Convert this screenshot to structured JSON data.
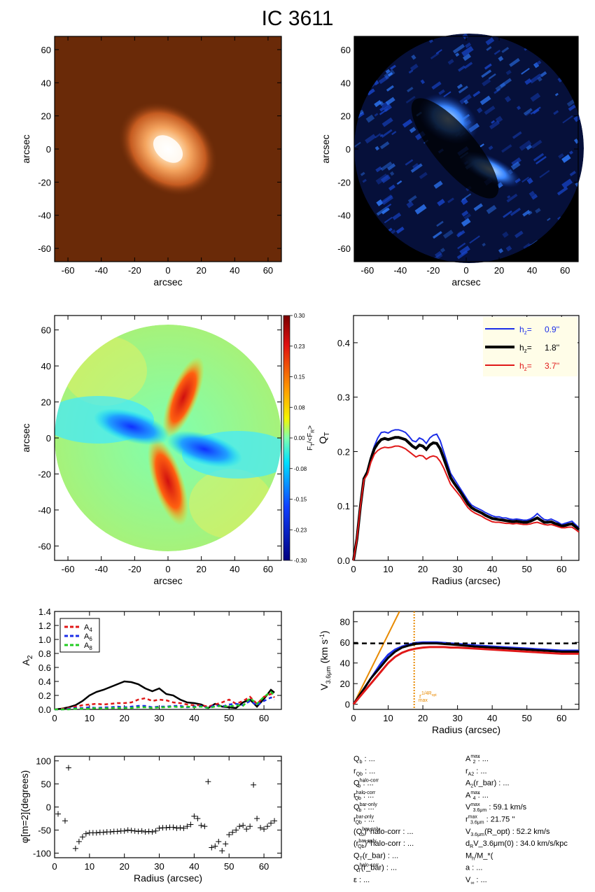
{
  "title": "IC 3611",
  "colors": {
    "orange_img": "#6a2a08",
    "blue_img": "#000000",
    "h1": "#1c2ee8",
    "h2": "#000000",
    "h3": "#e01818",
    "legend_bg": "#fffde8",
    "rmax": "#e88a00"
  },
  "colorbar": {
    "ticks": [
      "0.30",
      "0.23",
      "0.15",
      "0.08",
      "0.00",
      "-0.08",
      "-0.15",
      "-0.23",
      "-0.30"
    ],
    "label": "F_T/<F_R>"
  },
  "chart_data": [
    {
      "type": "heatmap",
      "name": "image-orange",
      "xlabel": "arcsec",
      "ylabel": "arcsec",
      "xlim": [
        -68,
        68
      ],
      "ylim": [
        -68,
        68
      ],
      "xticks": [
        "-60",
        "-40",
        "-20",
        "0",
        "20",
        "40",
        "60"
      ],
      "yticks": [
        "60",
        "40",
        "20",
        "0",
        "-20",
        "-40",
        "-60"
      ]
    },
    {
      "type": "heatmap",
      "name": "image-blue",
      "xlabel": "arcsec",
      "ylabel": "arcsec",
      "xlim": [
        -68,
        68
      ],
      "ylim": [
        -68,
        68
      ],
      "xticks": [
        "-60",
        "-40",
        "-20",
        "0",
        "20",
        "40",
        "60"
      ],
      "yticks": [
        "60",
        "40",
        "20",
        "0",
        "-20",
        "-40",
        "-60"
      ]
    },
    {
      "type": "heatmap",
      "name": "torque-map",
      "xlabel": "arcsec",
      "ylabel": "arcsec",
      "xlim": [
        -68,
        68
      ],
      "ylim": [
        -68,
        68
      ],
      "xticks": [
        "-60",
        "-40",
        "-20",
        "0",
        "20",
        "40",
        "60"
      ],
      "yticks": [
        "60",
        "40",
        "20",
        "0",
        "-20",
        "-40",
        "-60"
      ]
    },
    {
      "type": "line",
      "name": "qt-profile",
      "xlabel": "Radius (arcsec)",
      "ylabel": "Q_T",
      "xlim": [
        0,
        65
      ],
      "ylim": [
        0,
        0.45
      ],
      "xticks": [
        "0",
        "10",
        "20",
        "30",
        "40",
        "50",
        "60"
      ],
      "yticks": [
        "0.0",
        "0.1",
        "0.2",
        "0.3",
        "0.4"
      ],
      "legend": {
        "position": "top-right",
        "entries": [
          {
            "label": "h_z=",
            "value": "0.9''",
            "color": "#1c2ee8"
          },
          {
            "label": "h_z=",
            "value": "1.8''",
            "color": "#000000"
          },
          {
            "label": "h_z=",
            "value": "3.7''",
            "color": "#e01818"
          }
        ]
      },
      "x": [
        0,
        1,
        2,
        3,
        4,
        5,
        6,
        7,
        8,
        9,
        10,
        11,
        12,
        13,
        14,
        15,
        16,
        17,
        18,
        19,
        20,
        21,
        22,
        23,
        24,
        25,
        26,
        27,
        28,
        29,
        30,
        31,
        32,
        33,
        34,
        35,
        36,
        37,
        38,
        39,
        40,
        41,
        42,
        43,
        44,
        45,
        46,
        47,
        48,
        49,
        50,
        51,
        52,
        53,
        54,
        55,
        56,
        57,
        58,
        59,
        60,
        61,
        62,
        63,
        64,
        65
      ],
      "series": [
        {
          "name": "0.9''",
          "color": "#1c2ee8",
          "width": 2,
          "values": [
            0.0,
            0.04,
            0.1,
            0.15,
            0.165,
            0.19,
            0.21,
            0.225,
            0.235,
            0.236,
            0.234,
            0.238,
            0.24,
            0.24,
            0.238,
            0.235,
            0.228,
            0.22,
            0.218,
            0.225,
            0.222,
            0.215,
            0.225,
            0.23,
            0.232,
            0.22,
            0.2,
            0.18,
            0.16,
            0.15,
            0.14,
            0.13,
            0.12,
            0.11,
            0.102,
            0.098,
            0.095,
            0.092,
            0.088,
            0.085,
            0.082,
            0.08,
            0.08,
            0.078,
            0.078,
            0.076,
            0.075,
            0.076,
            0.075,
            0.074,
            0.074,
            0.076,
            0.08,
            0.086,
            0.08,
            0.075,
            0.074,
            0.076,
            0.073,
            0.07,
            0.066,
            0.068,
            0.07,
            0.072,
            0.066,
            0.06
          ]
        },
        {
          "name": "1.8''",
          "color": "#000000",
          "width": 4,
          "values": [
            0.0,
            0.04,
            0.1,
            0.15,
            0.162,
            0.186,
            0.205,
            0.215,
            0.222,
            0.224,
            0.222,
            0.224,
            0.226,
            0.226,
            0.224,
            0.222,
            0.216,
            0.21,
            0.206,
            0.212,
            0.21,
            0.204,
            0.212,
            0.216,
            0.215,
            0.205,
            0.188,
            0.17,
            0.152,
            0.142,
            0.133,
            0.124,
            0.114,
            0.104,
            0.097,
            0.093,
            0.09,
            0.087,
            0.083,
            0.08,
            0.077,
            0.076,
            0.075,
            0.074,
            0.073,
            0.072,
            0.071,
            0.072,
            0.071,
            0.07,
            0.07,
            0.072,
            0.075,
            0.078,
            0.074,
            0.07,
            0.07,
            0.071,
            0.068,
            0.066,
            0.063,
            0.064,
            0.066,
            0.067,
            0.062,
            0.057
          ]
        },
        {
          "name": "3.7''",
          "color": "#e01818",
          "width": 2,
          "values": [
            0.0,
            0.04,
            0.1,
            0.148,
            0.158,
            0.18,
            0.195,
            0.202,
            0.206,
            0.208,
            0.207,
            0.208,
            0.21,
            0.21,
            0.208,
            0.205,
            0.2,
            0.195,
            0.19,
            0.193,
            0.192,
            0.186,
            0.19,
            0.192,
            0.19,
            0.182,
            0.17,
            0.155,
            0.14,
            0.132,
            0.124,
            0.116,
            0.106,
            0.097,
            0.091,
            0.087,
            0.084,
            0.081,
            0.077,
            0.074,
            0.071,
            0.07,
            0.07,
            0.069,
            0.068,
            0.068,
            0.067,
            0.068,
            0.067,
            0.066,
            0.066,
            0.067,
            0.069,
            0.07,
            0.068,
            0.066,
            0.065,
            0.066,
            0.064,
            0.062,
            0.06,
            0.06,
            0.061,
            0.061,
            0.057,
            0.052
          ]
        }
      ]
    },
    {
      "type": "line",
      "name": "a2-profile",
      "xlabel": "",
      "ylabel": "A_2",
      "xlim": [
        0,
        65
      ],
      "ylim": [
        0,
        1.4
      ],
      "xticks": [
        "0",
        "10",
        "20",
        "30",
        "40",
        "50",
        "60"
      ],
      "yticks": [
        "1.4",
        "1.2",
        "1.0",
        "0.8",
        "0.6",
        "0.4",
        "0.2",
        "0.0"
      ],
      "legend": {
        "position": "top-left",
        "entries": [
          {
            "label": "A",
            "sub": "4",
            "color": "#e01818"
          },
          {
            "label": "A",
            "sub": "6",
            "color": "#1c2ee8"
          },
          {
            "label": "A",
            "sub": "8",
            "color": "#22cc22"
          }
        ]
      },
      "x": [
        0,
        2,
        4,
        6,
        8,
        10,
        12,
        14,
        16,
        18,
        20,
        22,
        24,
        26,
        28,
        30,
        32,
        34,
        36,
        38,
        40,
        42,
        44,
        46,
        48,
        50,
        52,
        54,
        56,
        58,
        60,
        62,
        63
      ],
      "series": [
        {
          "name": "A_2",
          "color": "#000000",
          "dash": "",
          "width": 2.5,
          "values": [
            0.0,
            0.01,
            0.03,
            0.06,
            0.12,
            0.2,
            0.25,
            0.28,
            0.32,
            0.36,
            0.4,
            0.39,
            0.36,
            0.3,
            0.26,
            0.3,
            0.22,
            0.2,
            0.14,
            0.1,
            0.09,
            0.07,
            0.02,
            0.08,
            0.04,
            0.03,
            0.02,
            0.1,
            0.14,
            0.04,
            0.15,
            0.28,
            0.24
          ]
        },
        {
          "name": "A4",
          "color": "#e01818",
          "dash": "5,4",
          "width": 2.5,
          "values": [
            0.0,
            0.01,
            0.02,
            0.04,
            0.06,
            0.07,
            0.08,
            0.07,
            0.08,
            0.09,
            0.09,
            0.1,
            0.14,
            0.16,
            0.12,
            0.14,
            0.13,
            0.1,
            0.09,
            0.07,
            0.06,
            0.06,
            0.04,
            0.07,
            0.1,
            0.14,
            0.08,
            0.12,
            0.18,
            0.08,
            0.18,
            0.22,
            0.17
          ]
        },
        {
          "name": "A6",
          "color": "#1c2ee8",
          "dash": "5,4",
          "width": 2.5,
          "values": [
            0.0,
            0.0,
            0.01,
            0.02,
            0.02,
            0.03,
            0.02,
            0.03,
            0.03,
            0.04,
            0.03,
            0.04,
            0.05,
            0.05,
            0.03,
            0.04,
            0.04,
            0.05,
            0.05,
            0.03,
            0.04,
            0.05,
            0.02,
            0.06,
            0.04,
            0.07,
            0.08,
            0.06,
            0.12,
            0.06,
            0.12,
            0.17,
            0.14
          ]
        },
        {
          "name": "A8",
          "color": "#22cc22",
          "dash": "5,4",
          "width": 2.5,
          "values": [
            0.0,
            0.0,
            0.0,
            0.01,
            0.01,
            0.01,
            0.02,
            0.01,
            0.02,
            0.02,
            0.02,
            0.02,
            0.03,
            0.03,
            0.02,
            0.03,
            0.03,
            0.04,
            0.03,
            0.04,
            0.03,
            0.04,
            0.02,
            0.04,
            0.05,
            0.04,
            0.06,
            0.05,
            0.16,
            0.08,
            0.18,
            0.25,
            0.2
          ]
        }
      ]
    },
    {
      "type": "line",
      "name": "rotation-curve",
      "xlabel": "Radius (arcsec)",
      "ylabel": "V_3.6μm (km s^-1)",
      "xlim": [
        0,
        65
      ],
      "ylim": [
        -5,
        90
      ],
      "xticks": [
        "0",
        "10",
        "20",
        "30",
        "40",
        "50",
        "60"
      ],
      "yticks": [
        "80",
        "60",
        "40",
        "20",
        "0"
      ],
      "vmax": 59,
      "r_label": "r",
      "r_label_super": "1/4R",
      "r_label_super_sub": "opt",
      "r_label_sub": "max",
      "r_mark": 17.5,
      "slope_line": {
        "x": [
          0,
          14
        ],
        "y": [
          0,
          95
        ]
      },
      "x": [
        0,
        1,
        2,
        3,
        4,
        5,
        6,
        7,
        8,
        9,
        10,
        12,
        14,
        16,
        18,
        20,
        22,
        24,
        26,
        28,
        30,
        35,
        40,
        45,
        50,
        55,
        60,
        65
      ],
      "series": [
        {
          "name": "0.9''",
          "color": "#1c2ee8",
          "width": 3,
          "values": [
            0,
            5,
            10,
            15,
            20,
            25,
            30,
            35,
            40,
            44,
            48,
            53,
            56,
            58,
            59.5,
            60,
            60,
            60,
            59.5,
            59,
            58.5,
            57,
            56,
            55,
            54,
            53,
            52,
            52
          ]
        },
        {
          "name": "1.8''",
          "color": "#000000",
          "width": 3,
          "values": [
            0,
            5,
            10,
            15,
            20,
            25,
            29,
            33,
            37,
            41,
            45,
            51,
            55,
            57,
            58.5,
            59,
            59,
            59,
            58.5,
            58,
            57.5,
            56,
            55,
            54,
            53,
            52,
            51,
            51
          ]
        },
        {
          "name": "3.7''",
          "color": "#e01818",
          "width": 3,
          "values": [
            0,
            4,
            8,
            12,
            16,
            20,
            24,
            28,
            32,
            36,
            40,
            46,
            50,
            52.5,
            54,
            55,
            55.5,
            55.5,
            55.5,
            55,
            55,
            54,
            53,
            52,
            51,
            50,
            49,
            49
          ]
        }
      ]
    },
    {
      "type": "scatter",
      "name": "phase-angle",
      "xlabel": "Radius (arcsec)",
      "ylabel": "φ[m=2](degrees)",
      "xlim": [
        0,
        65
      ],
      "ylim": [
        -110,
        110
      ],
      "xticks": [
        "0",
        "10",
        "20",
        "30",
        "40",
        "50",
        "60"
      ],
      "yticks": [
        "100",
        "50",
        "0",
        "-50",
        "-100"
      ],
      "x": [
        1,
        3,
        4,
        6,
        7,
        8,
        9,
        10,
        11,
        12,
        13,
        14,
        15,
        16,
        17,
        18,
        19,
        20,
        21,
        22,
        23,
        24,
        25,
        26,
        27,
        28,
        29,
        30,
        31,
        32,
        33,
        34,
        35,
        36,
        37,
        38,
        39,
        40,
        41,
        42,
        43,
        44,
        45,
        46,
        47,
        48,
        49,
        50,
        51,
        52,
        53,
        54,
        55,
        56,
        57,
        58,
        59,
        60,
        61,
        62,
        63
      ],
      "y": [
        -15,
        -30,
        85,
        -90,
        -75,
        -65,
        -58,
        -56,
        -56,
        -56,
        -55,
        -55,
        -54,
        -54,
        -53,
        -53,
        -52,
        -52,
        -50,
        -51,
        -52,
        -53,
        -52,
        -54,
        -53,
        -54,
        -52,
        -46,
        -45,
        -45,
        -44,
        -44,
        -46,
        -45,
        -46,
        -42,
        -38,
        -20,
        -25,
        -40,
        -42,
        55,
        -88,
        -85,
        -75,
        -95,
        -80,
        -60,
        -55,
        -50,
        -42,
        -40,
        -48,
        -42,
        48,
        -25,
        -45,
        -48,
        -42,
        -35,
        -30
      ]
    }
  ],
  "stats_left": [
    {
      "b": "Q",
      "sub": "b",
      "sup": "",
      "rest": " : ..."
    },
    {
      "b": "r",
      "sub": "Qb",
      "sup": "",
      "rest": " : ..."
    },
    {
      "b": "Q",
      "sub": "b",
      "sup": "halo-corr",
      "rest": " : ..."
    },
    {
      "b": "r",
      "sub": "Qb",
      "sup": "halo-corr",
      "rest": " : ..."
    },
    {
      "b": "Q",
      "sub": "b",
      "sup": "bar-only",
      "rest": " : ..."
    },
    {
      "b": "r",
      "sub": "Qb",
      "sup": "bar-only",
      "rest": " : ..."
    },
    {
      "b": "(Q",
      "sub": "b",
      "sup": "bar-only",
      "rest": ")^halo-corr : ..."
    },
    {
      "b": "(r",
      "sub": "Qb",
      "sup": "bar-only",
      "rest": ")^halo-corr : ..."
    },
    {
      "b": "Q",
      "sub": "T",
      "sup": "",
      "rest": "(r_bar) : ..."
    },
    {
      "b": "Q",
      "sub": "T",
      "sup": "halo-corr",
      "rest": "(r_bar) : ..."
    },
    {
      "b": "ε",
      "sub": "",
      "sup": "",
      "rest": " : ..."
    }
  ],
  "stats_right": [
    {
      "b": "A",
      "sub": "2",
      "sup": "max",
      "rest": " : ..."
    },
    {
      "b": "r",
      "sub": "A2",
      "sup": "",
      "rest": " : ..."
    },
    {
      "b": "A",
      "sub": "2",
      "sup": "",
      "rest": "(r_bar) : ..."
    },
    {
      "b": "A",
      "sub": "4",
      "sup": "max",
      "rest": " : ..."
    },
    {
      "b": "V",
      "sub": "3.6μm",
      "sup": "max",
      "rest": " :  59.1 km/s"
    },
    {
      "b": "r",
      "sub": "3.6μm",
      "sup": "max",
      "rest": " :  21.75  ''"
    },
    {
      "b": "V",
      "sub": "3.6μm",
      "sup": "",
      "rest": "(R_opt) :  52.2 km/s"
    },
    {
      "b": "d",
      "sub": "R",
      "sup": "",
      "rest": "V_3.6μm(0) :  34.0 km/s/kpc"
    },
    {
      "b": "M",
      "sub": "h",
      "sup": "",
      "rest": "/M_*(<R_opt) : ..."
    },
    {
      "b": "a",
      "sub": "",
      "sup": "",
      "rest": " : ..."
    },
    {
      "b": "V",
      "sub": "∞",
      "sup": "",
      "rest": " : ..."
    }
  ]
}
